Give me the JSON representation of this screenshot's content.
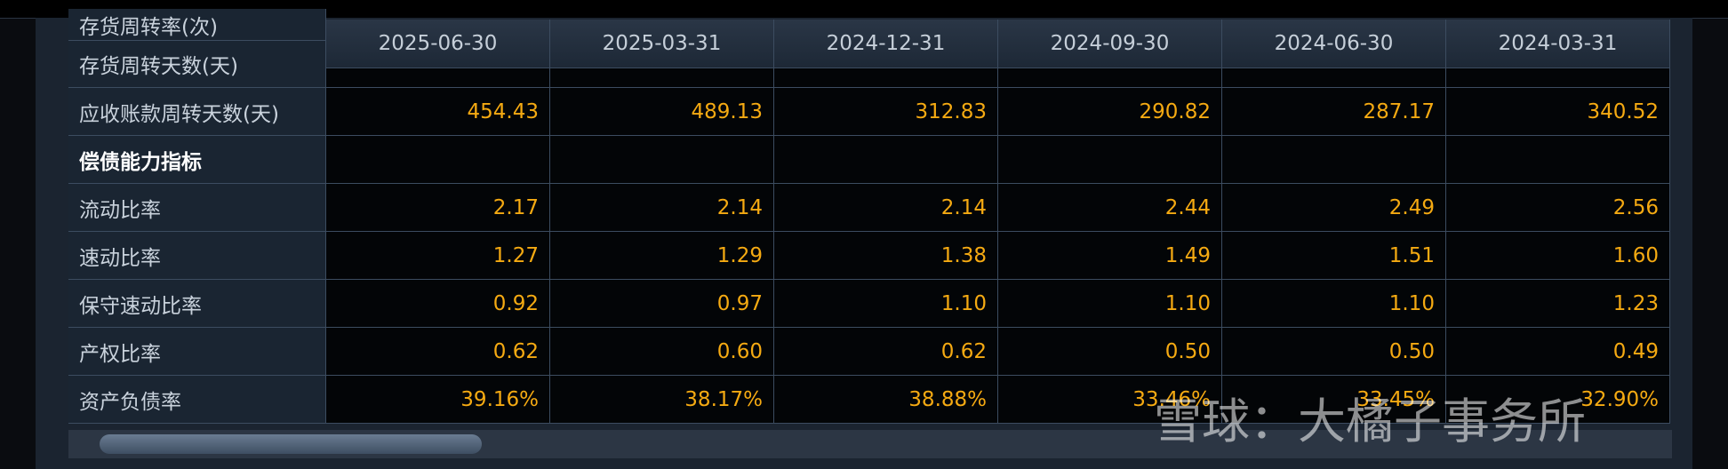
{
  "header": {
    "dates": [
      "2025-06-30",
      "2025-03-31",
      "2024-12-31",
      "2024-09-30",
      "2024-06-30",
      "2024-03-31"
    ]
  },
  "partial_labels": [
    "存货周转率(次)",
    "存货周转天数(天)"
  ],
  "rows": [
    {
      "label": "应收账款周转天数(天)",
      "values": [
        "454.43",
        "489.13",
        "312.83",
        "290.82",
        "287.17",
        "340.52"
      ]
    },
    {
      "label": "偿债能力指标",
      "values": []
    },
    {
      "label": "流动比率",
      "values": [
        "2.17",
        "2.14",
        "2.14",
        "2.44",
        "2.49",
        "2.56"
      ]
    },
    {
      "label": "速动比率",
      "values": [
        "1.27",
        "1.29",
        "1.38",
        "1.49",
        "1.51",
        "1.60"
      ]
    },
    {
      "label": "保守速动比率",
      "values": [
        "0.92",
        "0.97",
        "1.10",
        "1.10",
        "1.10",
        "1.23"
      ]
    },
    {
      "label": "产权比率",
      "values": [
        "0.62",
        "0.60",
        "0.62",
        "0.50",
        "0.50",
        "0.49"
      ]
    },
    {
      "label": "资产负债率",
      "values": [
        "39.16%",
        "38.17%",
        "38.88%",
        "33.46%",
        "33.45%",
        "32.90%"
      ]
    }
  ],
  "watermark": "雪球：大橘子事务所"
}
